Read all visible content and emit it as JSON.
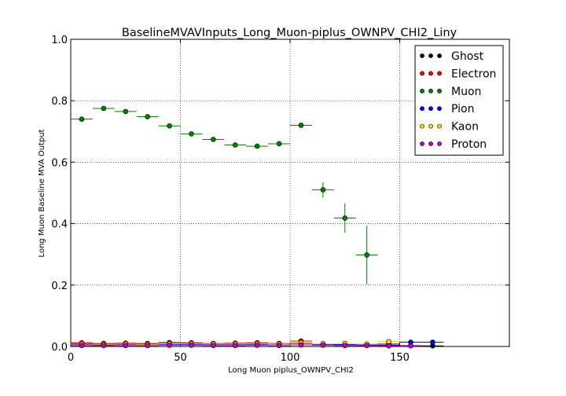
{
  "chart_data": {
    "type": "scatter",
    "title": "BaselineMVAVInputs_Long_Muon-piplus_OWNPV_CHI2_Liny",
    "xlabel": "Long Muon piplus_OWNPV_CHI2",
    "ylabel": "Long Muon Baseline MVA Output",
    "xlim": [
      0,
      200
    ],
    "ylim": [
      0,
      1.0
    ],
    "x_ticks": [
      0,
      50,
      100,
      150
    ],
    "x_tick_labels": [
      "0",
      "50",
      "100",
      "150"
    ],
    "y_ticks": [
      0,
      0.2,
      0.4,
      0.6,
      0.8,
      1.0
    ],
    "y_tick_labels": [
      "0.0",
      "0.2",
      "0.4",
      "0.6",
      "0.8",
      "1.0"
    ],
    "grid": true,
    "legend_position": "top-right",
    "bin_width": 10,
    "series": [
      {
        "name": "Ghost",
        "color": "#000000",
        "x": [
          5,
          15,
          25,
          35,
          45,
          55,
          65,
          75,
          85,
          95,
          105,
          115,
          125,
          135,
          145,
          155,
          165
        ],
        "y": [
          0.01,
          0.008,
          0.009,
          0.008,
          0.01,
          0.011,
          0.009,
          0.008,
          0.01,
          0.009,
          0.012,
          0.007,
          0.006,
          0.005,
          0.004,
          0.003,
          0.002
        ],
        "yerr": [
          0.002,
          0.002,
          0.002,
          0.002,
          0.002,
          0.002,
          0.002,
          0.002,
          0.002,
          0.002,
          0.004,
          0.003,
          0.003,
          0.003,
          0.003,
          0.002,
          0.002
        ]
      },
      {
        "name": "Electron",
        "color": "#ff0000",
        "x": [
          5,
          15,
          25,
          35,
          45,
          55,
          65,
          75,
          85,
          95,
          105,
          115,
          125,
          135
        ],
        "y": [
          0.012,
          0.01,
          0.011,
          0.01,
          0.013,
          0.012,
          0.01,
          0.011,
          0.012,
          0.01,
          0.018,
          0.008,
          0.006,
          0.004
        ],
        "yerr": [
          0.003,
          0.003,
          0.003,
          0.003,
          0.003,
          0.003,
          0.003,
          0.003,
          0.003,
          0.003,
          0.006,
          0.004,
          0.003,
          0.003
        ]
      },
      {
        "name": "Muon",
        "color": "#008000",
        "x": [
          5,
          15,
          25,
          35,
          45,
          55,
          65,
          75,
          85,
          95,
          105,
          115,
          125,
          135
        ],
        "y": [
          0.74,
          0.775,
          0.765,
          0.748,
          0.718,
          0.692,
          0.674,
          0.656,
          0.652,
          0.66,
          0.72,
          0.51,
          0.418,
          0.298
        ],
        "yerr": [
          0.004,
          0.004,
          0.004,
          0.004,
          0.004,
          0.005,
          0.005,
          0.005,
          0.006,
          0.006,
          0.008,
          0.025,
          0.048,
          0.095
        ]
      },
      {
        "name": "Pion",
        "color": "#0000ff",
        "x": [
          5,
          15,
          25,
          35,
          45,
          55,
          65,
          75,
          85,
          95,
          105,
          115,
          125,
          135,
          145,
          155,
          165
        ],
        "y": [
          0.006,
          0.005,
          0.006,
          0.006,
          0.007,
          0.007,
          0.006,
          0.006,
          0.007,
          0.007,
          0.01,
          0.008,
          0.006,
          0.005,
          0.008,
          0.014,
          0.014
        ],
        "yerr": [
          0.001,
          0.001,
          0.001,
          0.001,
          0.001,
          0.001,
          0.001,
          0.001,
          0.001,
          0.001,
          0.002,
          0.002,
          0.002,
          0.002,
          0.003,
          0.004,
          0.004
        ]
      },
      {
        "name": "Kaon",
        "color": "#ffd700",
        "x": [
          5,
          15,
          25,
          35,
          45,
          55,
          65,
          75,
          85,
          95,
          105,
          115,
          125,
          135,
          145
        ],
        "y": [
          0.008,
          0.007,
          0.008,
          0.007,
          0.009,
          0.009,
          0.008,
          0.008,
          0.009,
          0.008,
          0.012,
          0.009,
          0.01,
          0.008,
          0.016
        ],
        "yerr": [
          0.002,
          0.002,
          0.002,
          0.002,
          0.002,
          0.002,
          0.002,
          0.002,
          0.002,
          0.002,
          0.004,
          0.003,
          0.003,
          0.003,
          0.006
        ]
      },
      {
        "name": "Proton",
        "color": "#bf00bf",
        "x": [
          5,
          15,
          25,
          35,
          45,
          55,
          65,
          75,
          85,
          95,
          105,
          115,
          125,
          135,
          145,
          155
        ],
        "y": [
          0.003,
          0.003,
          0.003,
          0.003,
          0.004,
          0.004,
          0.003,
          0.003,
          0.004,
          0.003,
          0.005,
          0.004,
          0.003,
          0.003,
          0.002,
          0.002
        ],
        "yerr": [
          0.001,
          0.001,
          0.001,
          0.001,
          0.001,
          0.001,
          0.001,
          0.001,
          0.001,
          0.001,
          0.002,
          0.002,
          0.001,
          0.001,
          0.001,
          0.001
        ]
      }
    ]
  }
}
